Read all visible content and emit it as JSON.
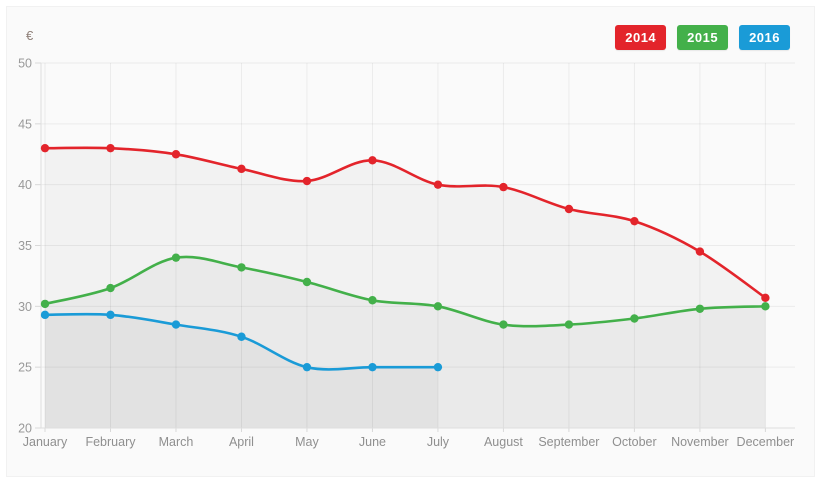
{
  "chart_data": {
    "type": "line",
    "title": "",
    "xlabel": "",
    "ylabel": "€",
    "ylim": [
      20,
      50
    ],
    "y_ticks": [
      50,
      45,
      40,
      35,
      30,
      25,
      20
    ],
    "grid": true,
    "legend_position": "top-right",
    "categories": [
      "January",
      "February",
      "March",
      "April",
      "May",
      "June",
      "July",
      "August",
      "September",
      "October",
      "November",
      "December"
    ],
    "series": [
      {
        "name": "2014",
        "color": "#e3242b",
        "values": [
          43,
          43,
          42.5,
          41.3,
          40.3,
          42,
          40,
          39.8,
          38,
          37,
          34.5,
          30.7
        ]
      },
      {
        "name": "2015",
        "color": "#43b04a",
        "values": [
          30.2,
          31.5,
          34,
          33.2,
          32,
          30.5,
          30,
          28.5,
          28.5,
          29,
          29.8,
          30
        ]
      },
      {
        "name": "2016",
        "color": "#1a9bd7",
        "values": [
          29.3,
          29.3,
          28.5,
          27.5,
          25,
          25,
          25
        ]
      }
    ]
  },
  "colors": {
    "axis_text": "#999999",
    "month_text": "#8f8f8f",
    "grid_line": "rgba(0,0,0,0.06)",
    "axis_line": "#dedede",
    "area_fill": "rgba(0,0,0,0.033)"
  }
}
